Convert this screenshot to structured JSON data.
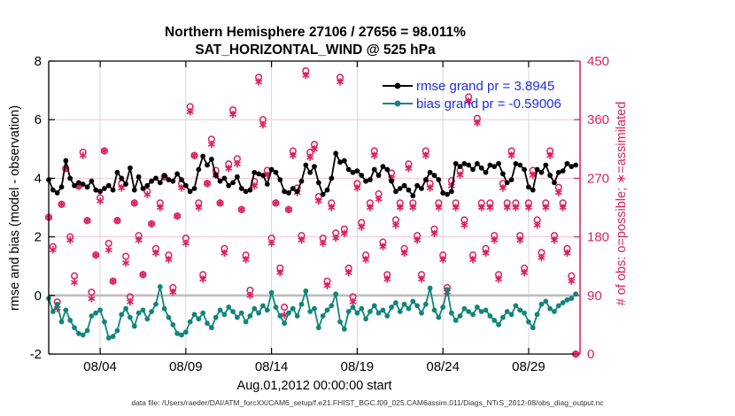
{
  "colors": {
    "rmse": "#000000",
    "bias": "#11857b",
    "obs": "#da1f60",
    "legend_text": "#1b2fe2",
    "grid_gray": "#d6d6d6",
    "grid_pink": "#f5c5d4",
    "zero_line": "#bdbdbd",
    "axis_black": "#000000",
    "background": "#ffffff"
  },
  "chart_data": {
    "type": "line",
    "title": "Northern Hemisphere 27106 / 27656 = 98.011%",
    "subtitle": "SAT_HORIZONTAL_WIND @ 525 hPa",
    "xlabel": "Aug.01,2012 00:00:00 start",
    "ylabel_left": "rmse and bias (model - observation)",
    "ylabel_right": "# of obs: o=possible; ∗=assimilated",
    "caption": "data file: /Users/raeder/DAI/ATM_forcXX/CAM6_setup/f.e21.FHIST_BGC.f09_025.CAM6assim.011/Diags_NTrS_2012-08/obs_diag_output.nc",
    "xlim_days": [
      0,
      31
    ],
    "ylim_left": [
      -2,
      8
    ],
    "ylim_right": [
      0,
      450
    ],
    "x_step_days": 0.25,
    "grid": {
      "vertical_at_xticks": true,
      "horizontal_pink_right": [
        180,
        270,
        360
      ],
      "zero_line_left": 0
    },
    "legend_position": "top-right-inside",
    "xticks": [
      {
        "day": 3,
        "label": "08/04"
      },
      {
        "day": 8,
        "label": "08/09"
      },
      {
        "day": 13,
        "label": "08/14"
      },
      {
        "day": 18,
        "label": "08/19"
      },
      {
        "day": 23,
        "label": "08/24"
      },
      {
        "day": 28,
        "label": "08/29"
      }
    ],
    "yticks_left": [
      -2,
      0,
      2,
      4,
      6,
      8
    ],
    "yticks_right": [
      0,
      90,
      180,
      270,
      360,
      450
    ],
    "legend": [
      {
        "name": "rmse",
        "label": "rmse grand pr = 3.8945"
      },
      {
        "name": "bias",
        "label": "bias grand pr = -0.59006"
      }
    ],
    "series": [
      {
        "name": "rmse",
        "axis": "left",
        "style": "line-dot",
        "values": [
          3.95,
          3.6,
          3.5,
          3.7,
          4.6,
          4.0,
          3.75,
          3.85,
          3.8,
          3.7,
          3.9,
          3.6,
          3.55,
          3.65,
          3.75,
          3.6,
          4.2,
          4.0,
          3.8,
          4.35,
          3.6,
          4.05,
          3.65,
          3.75,
          3.9,
          4.0,
          3.85,
          4.1,
          3.95,
          3.9,
          4.15,
          3.95,
          3.75,
          3.55,
          3.65,
          4.3,
          4.75,
          4.45,
          4.65,
          4.1,
          3.9,
          4.0,
          3.75,
          3.85,
          4.05,
          3.65,
          3.55,
          3.6,
          4.2,
          4.15,
          4.1,
          3.8,
          4.3,
          4.2,
          3.95,
          3.55,
          3.5,
          3.65,
          3.55,
          3.9,
          4.45,
          4.2,
          4.4,
          3.85,
          3.45,
          3.6,
          4.0,
          4.85,
          4.55,
          4.6,
          4.3,
          4.2,
          4.25,
          4.1,
          3.9,
          3.95,
          4.3,
          4.1,
          4.4,
          4.3,
          3.9,
          3.55,
          3.65,
          3.75,
          3.6,
          3.4,
          3.75,
          3.65,
          3.95,
          4.2,
          4.1,
          3.95,
          3.5,
          3.45,
          3.55,
          4.5,
          4.4,
          4.5,
          4.45,
          4.3,
          4.5,
          4.35,
          4.2,
          4.45,
          4.4,
          4.5,
          4.15,
          3.85,
          3.95,
          4.5,
          4.45,
          4.3,
          3.7,
          3.6,
          4.3,
          4.2,
          4.45,
          4.1,
          3.85,
          4.2,
          4.25,
          4.5,
          4.4,
          4.45
        ]
      },
      {
        "name": "bias",
        "axis": "left",
        "style": "line-dot",
        "values": [
          -0.1,
          -0.55,
          -0.3,
          -0.9,
          -0.5,
          -0.85,
          -1.1,
          -1.3,
          -1.35,
          -1.2,
          -0.7,
          -0.6,
          -0.5,
          -0.9,
          -1.45,
          -1.4,
          -1.2,
          -0.65,
          -0.45,
          -0.75,
          -1.05,
          -0.6,
          -0.5,
          -0.8,
          -0.55,
          -0.3,
          0.3,
          -0.45,
          -0.75,
          -1.0,
          -1.3,
          -1.35,
          -1.25,
          -0.9,
          -0.65,
          -0.8,
          -0.6,
          -0.95,
          -1.1,
          -0.75,
          -0.5,
          -0.65,
          -0.4,
          -0.55,
          -0.75,
          -0.6,
          -0.9,
          -0.7,
          -0.45,
          -0.6,
          -0.35,
          -0.5,
          0.1,
          -0.4,
          -0.7,
          -0.95,
          -0.6,
          -0.45,
          -0.7,
          -0.3,
          0.15,
          -0.55,
          -0.45,
          -1.1,
          -0.7,
          -0.5,
          -0.35,
          0.05,
          -0.9,
          -1.15,
          -0.55,
          -0.4,
          -0.6,
          -0.45,
          -0.8,
          -0.55,
          -0.35,
          -0.6,
          -0.5,
          -0.7,
          -0.4,
          -0.25,
          -0.55,
          -0.3,
          -0.45,
          -0.2,
          -0.35,
          -0.6,
          -0.3,
          0.25,
          -0.5,
          -0.75,
          -0.4,
          0.2,
          -0.6,
          -0.85,
          -0.7,
          -0.45,
          -0.55,
          -0.65,
          -0.4,
          -0.55,
          -0.5,
          -0.7,
          -0.85,
          -1.0,
          -0.75,
          -0.55,
          -0.65,
          -0.35,
          -0.5,
          -0.6,
          -0.9,
          -1.1,
          -0.65,
          -0.3,
          -0.2,
          -0.45,
          -0.55,
          -0.35,
          -0.25,
          -0.15,
          -0.1,
          0.05
        ]
      },
      {
        "name": "possible_obs",
        "axis": "right",
        "style": "open-circle",
        "values": [
          210,
          165,
          80,
          230,
          285,
          180,
          120,
          258,
          310,
          205,
          95,
          152,
          240,
          312,
          170,
          112,
          205,
          262,
          150,
          88,
          232,
          182,
          122,
          250,
          200,
          162,
          232,
          272,
          152,
          102,
          212,
          262,
          178,
          380,
          305,
          232,
          122,
          262,
          330,
          282,
          232,
          162,
          292,
          375,
          300,
          222,
          152,
          98,
          265,
          425,
          360,
          282,
          178,
          232,
          132,
          72,
          222,
          312,
          255,
          182,
          435,
          310,
          322,
          242,
          178,
          112,
          232,
          186,
          425,
          192,
          132,
          88,
          262,
          202,
          152,
          232,
          312,
          246,
          172,
          122,
          278,
          206,
          232,
          162,
          292,
          232,
          182,
          122,
          312,
          262,
          192,
          232,
          152,
          102,
          266,
          232,
          282,
          206,
          395,
          152,
          362,
          232,
          162,
          232,
          182,
          122,
          262,
          232,
          312,
          232,
          182,
          132,
          232,
          282,
          206,
          156,
          232,
          312,
          182,
          256,
          232,
          162,
          120,
          0
        ]
      },
      {
        "name": "assimilated_obs",
        "axis": "right",
        "style": "asterisk",
        "values": [
          210,
          160,
          70,
          230,
          285,
          175,
          110,
          258,
          305,
          205,
          85,
          152,
          235,
          312,
          160,
          112,
          205,
          255,
          140,
          80,
          232,
          175,
          122,
          245,
          200,
          155,
          225,
          272,
          145,
          95,
          212,
          255,
          170,
          372,
          305,
          225,
          115,
          262,
          322,
          275,
          232,
          155,
          285,
          368,
          292,
          222,
          145,
          90,
          258,
          418,
          352,
          275,
          170,
          232,
          125,
          60,
          222,
          305,
          248,
          175,
          428,
          302,
          315,
          235,
          170,
          105,
          225,
          178,
          418,
          185,
          125,
          80,
          255,
          195,
          145,
          225,
          305,
          238,
          165,
          115,
          270,
          198,
          225,
          155,
          285,
          225,
          175,
          115,
          305,
          255,
          185,
          225,
          145,
          95,
          258,
          225,
          275,
          198,
          388,
          145,
          355,
          225,
          155,
          225,
          175,
          115,
          255,
          225,
          305,
          225,
          175,
          125,
          225,
          275,
          198,
          148,
          225,
          305,
          175,
          248,
          225,
          155,
          112,
          0
        ]
      }
    ]
  }
}
